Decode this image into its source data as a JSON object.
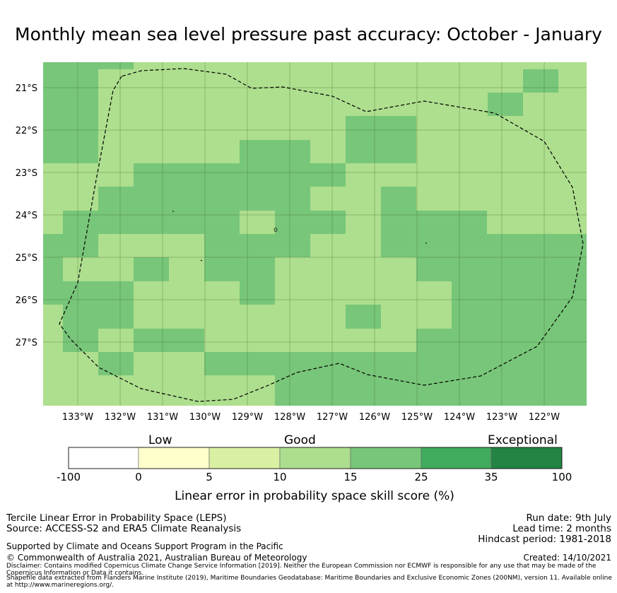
{
  "title": "Monthly mean sea level pressure past accuracy: October - January",
  "map": {
    "lat_labels": [
      "21°S",
      "22°S",
      "23°S",
      "24°S",
      "25°S",
      "26°S",
      "27°S"
    ],
    "lon_labels": [
      "133°W",
      "132°W",
      "131°W",
      "130°W",
      "129°W",
      "128°W",
      "127°W",
      "126°W",
      "125°W",
      "124°W",
      "123°W",
      "122°W"
    ],
    "colors": {
      "good": "#addf8e",
      "exceptional_low": "#78c679",
      "ocean_bg": "#addf8e"
    }
  },
  "colorbar": {
    "categories": [
      "Low",
      "Good",
      "Exceptional"
    ],
    "ticks": [
      "-100",
      "0",
      "5",
      "10",
      "15",
      "25",
      "35",
      "100"
    ],
    "colors": [
      "#ffffff",
      "#ffffcc",
      "#d9f0a3",
      "#addd8e",
      "#78c679",
      "#41ab5d",
      "#238443"
    ],
    "label": "Linear error in probability space skill score (%)"
  },
  "footer": {
    "left": [
      "Tercile Linear Error in Probability Space (LEPS)",
      "Source: ACCESS-S2 and ERA5 Climate Reanalysis"
    ],
    "right": [
      "Run date: 9th July",
      "Lead time: 2 months",
      "Hindcast period: 1981-2018"
    ],
    "support": "Supported by Climate and Oceans Support Program in the Pacific",
    "copyright": "© Commonwealth of Australia 2021, Australian Bureau of Meteorology",
    "created": "Created: 14/10/2021",
    "disclaimer": "Disclaimer: Contains modified Copernicus Climate Change Service Information [2019]. Neither the European Commission nor ECMWF is responsible for any use that may be made of the Copernicus Information or Data it contains.",
    "shapefile": "Shapefile data extracted from Flanders Marine Institute (2019), Maritime Boundaries Geodatabase: Maritime Boundaries and Exclusive Economic Zones (200NM), version 11. Available online at http://www.marineregions.org/."
  }
}
